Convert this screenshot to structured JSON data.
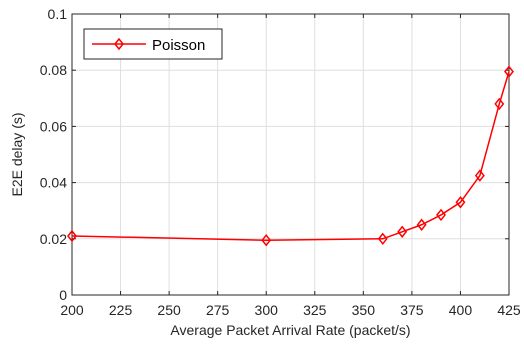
{
  "chart_data": {
    "type": "line",
    "xlabel": "Average Packet Arrival Rate (packet/s)",
    "ylabel": "E2E delay (s)",
    "xlim": [
      200,
      425
    ],
    "ylim": [
      0,
      0.1
    ],
    "x_ticks": [
      200,
      225,
      250,
      275,
      300,
      325,
      350,
      375,
      400,
      425
    ],
    "y_ticks": [
      0,
      0.02,
      0.04,
      0.06,
      0.08,
      0.1
    ],
    "x_tick_labels": [
      "200",
      "225",
      "250",
      "275",
      "300",
      "325",
      "350",
      "375",
      "400",
      "425"
    ],
    "y_tick_labels": [
      "0",
      "0.02",
      "0.04",
      "0.06",
      "0.08",
      "0.1"
    ],
    "grid": true,
    "legend_position": "top-left",
    "series": [
      {
        "name": "Poisson",
        "color": "#ff0000",
        "marker": "diamond",
        "x": [
          200,
          300,
          360,
          370,
          380,
          390,
          400,
          410,
          420,
          425
        ],
        "y": [
          0.021,
          0.0195,
          0.02,
          0.0225,
          0.025,
          0.0285,
          0.033,
          0.0425,
          0.068,
          0.0795
        ]
      }
    ]
  }
}
